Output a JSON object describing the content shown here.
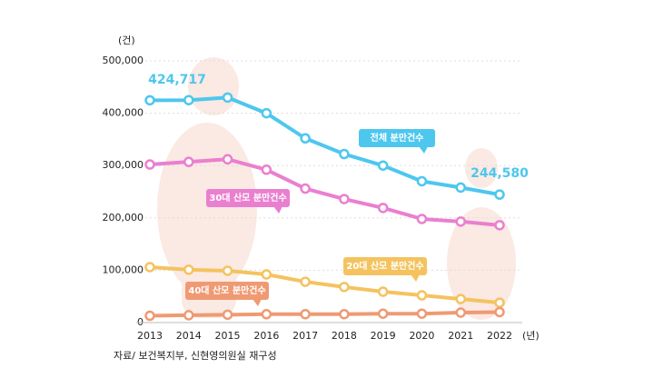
{
  "chart_data": {
    "type": "line",
    "y_unit": "(건)",
    "x_unit": "(년)",
    "source": "자료/ 보건복지부, 신현영의원실 재구성",
    "categories": [
      "2013",
      "2014",
      "2015",
      "2016",
      "2017",
      "2018",
      "2019",
      "2020",
      "2021",
      "2022"
    ],
    "ylim": [
      0,
      500000
    ],
    "yticks": [
      0,
      {
        "value": 100000,
        "label": "100,000"
      },
      {
        "value": 200000,
        "label": "200,000"
      },
      {
        "value": 300000,
        "label": "300,000"
      },
      {
        "value": 400000,
        "label": "400,000"
      },
      {
        "value": 500000,
        "label": "500,000"
      }
    ],
    "grid": true,
    "series": [
      {
        "name": "전체 분만건수",
        "color": "#4dc7ee",
        "values": [
          424717,
          425000,
          430000,
          400000,
          352000,
          322000,
          300000,
          270000,
          258000,
          244580
        ],
        "value_labels": [
          "424,717",
          null,
          null,
          null,
          null,
          null,
          null,
          null,
          null,
          "244,580"
        ]
      },
      {
        "name": "30대 산모 분만건수",
        "color": "#ea7fd0",
        "values": [
          302000,
          307000,
          312000,
          292000,
          256000,
          236000,
          219000,
          198000,
          193000,
          186000
        ]
      },
      {
        "name": "20대 산모 분만건수",
        "color": "#f4c35f",
        "values": [
          106000,
          101000,
          99000,
          92000,
          78000,
          68000,
          59000,
          52000,
          45000,
          38000
        ]
      },
      {
        "name": "40대 산모 분만건수",
        "color": "#ef9a73",
        "values": [
          13000,
          14000,
          15000,
          16000,
          16000,
          16000,
          17000,
          17000,
          19000,
          20000
        ]
      }
    ]
  }
}
